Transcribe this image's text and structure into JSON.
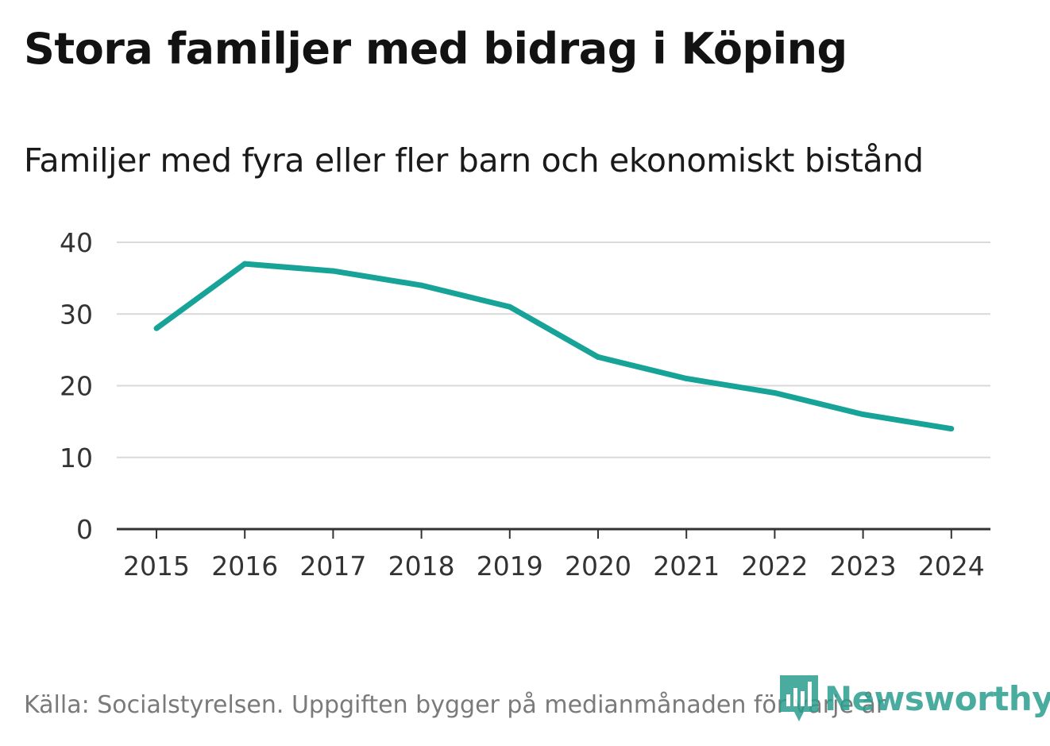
{
  "header": {
    "title": "Stora familjer med bidrag i Köping",
    "subtitle": "Familjer med fyra eller fler barn och ekonomiskt bistånd"
  },
  "footer": {
    "source": "Källa: Socialstyrelsen. Uppgiften bygger på medianmånaden för varje år",
    "brand": "Newsworthy"
  },
  "colors": {
    "line": "#17a398",
    "grid": "#d9d9d9",
    "axis": "#333333",
    "brand": "#2b9e8f"
  },
  "chart_data": {
    "type": "line",
    "title": "Stora familjer med bidrag i Köping",
    "subtitle": "Familjer med fyra eller fler barn och ekonomiskt bistånd",
    "xlabel": "",
    "ylabel": "",
    "categories": [
      "2015",
      "2016",
      "2017",
      "2018",
      "2019",
      "2020",
      "2021",
      "2022",
      "2023",
      "2024"
    ],
    "series": [
      {
        "name": "Familjer med fyra eller fler barn och ekonomiskt bistånd",
        "values": [
          28,
          37,
          36,
          34,
          31,
          24,
          21,
          19,
          16,
          14
        ]
      }
    ],
    "ylim": [
      0,
      40
    ],
    "yticks": [
      0,
      10,
      20,
      30,
      40
    ],
    "grid": true,
    "legend": "none"
  }
}
